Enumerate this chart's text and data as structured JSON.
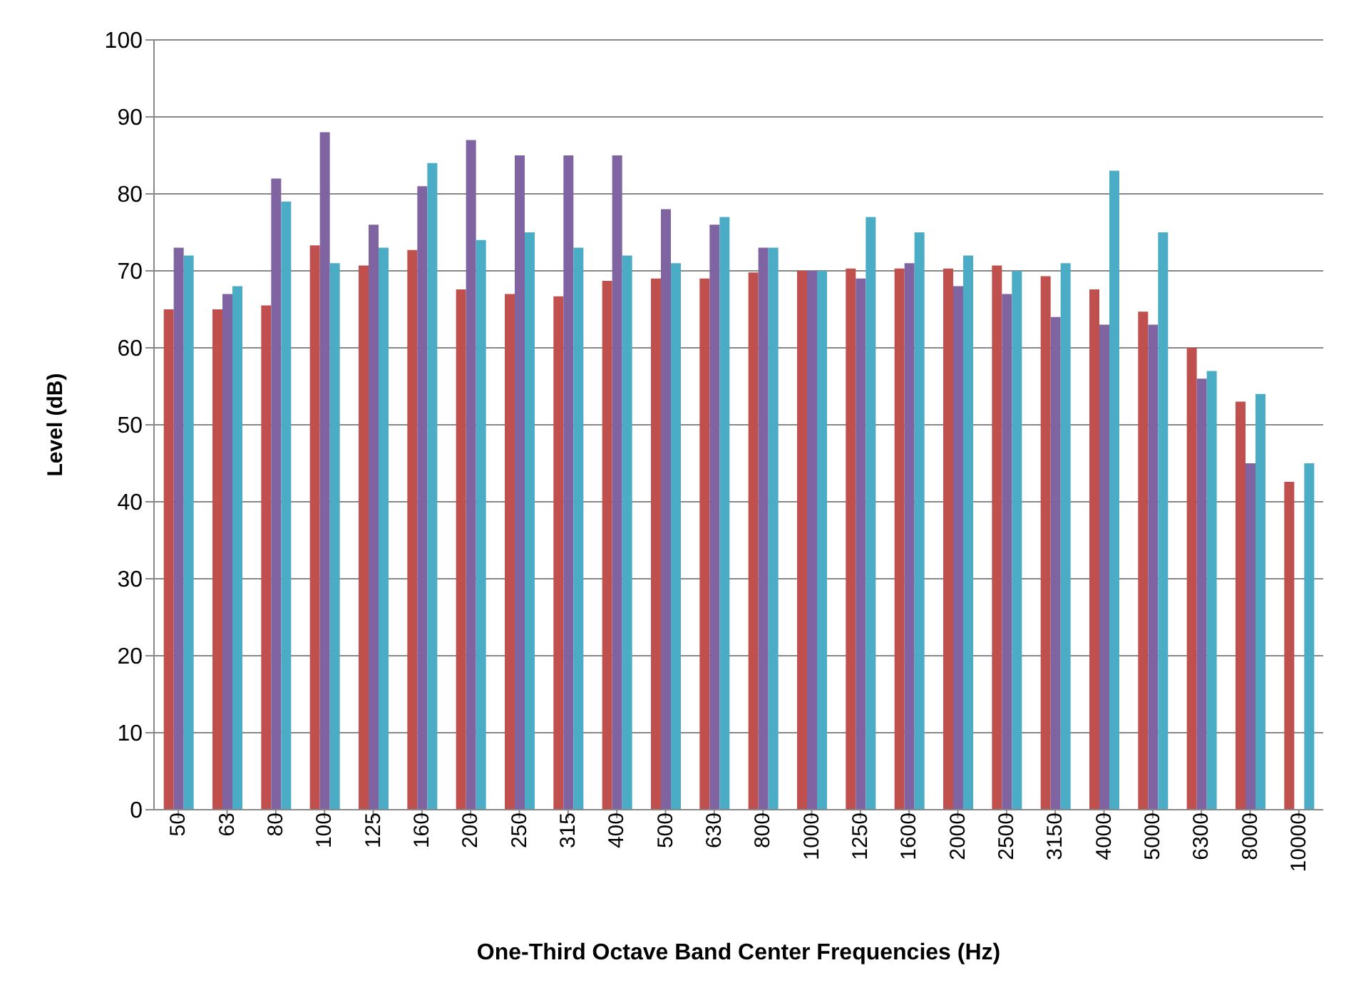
{
  "chart_data": {
    "type": "bar",
    "xlabel": "One-Third Octave Band Center Frequencies (Hz)",
    "ylabel": "Level (dB)",
    "categories": [
      "50",
      "63",
      "80",
      "100",
      "125",
      "160",
      "200",
      "250",
      "315",
      "400",
      "500",
      "630",
      "800",
      "1000",
      "1250",
      "1600",
      "2000",
      "2500",
      "3150",
      "4000",
      "5000",
      "6300",
      "8000",
      "10000"
    ],
    "series": [
      {
        "color": "#c0504d",
        "values": [
          65,
          65,
          65.5,
          73.3,
          70.7,
          72.7,
          67.6,
          67,
          66.7,
          68.7,
          69,
          69,
          69.8,
          70,
          70.3,
          70.3,
          70.3,
          70.7,
          69.3,
          67.6,
          64.7,
          60,
          53,
          42.6
        ]
      },
      {
        "color": "#8064a2",
        "values": [
          73,
          67,
          82,
          88,
          76,
          81,
          87,
          85,
          85,
          85,
          78,
          76,
          73,
          70,
          69,
          71,
          68,
          67,
          64,
          63,
          63,
          56,
          45,
          null
        ]
      },
      {
        "color": "#4bacc6",
        "values": [
          72,
          68,
          79,
          71,
          73,
          84,
          74,
          75,
          73,
          72,
          71,
          77,
          73,
          70,
          77,
          75,
          72,
          70,
          71,
          83,
          75,
          57,
          54,
          45
        ]
      }
    ],
    "ylim": [
      0,
      100
    ],
    "yticks": [
      0,
      10,
      20,
      30,
      40,
      50,
      60,
      70,
      80,
      90,
      100
    ],
    "grid": "y"
  }
}
